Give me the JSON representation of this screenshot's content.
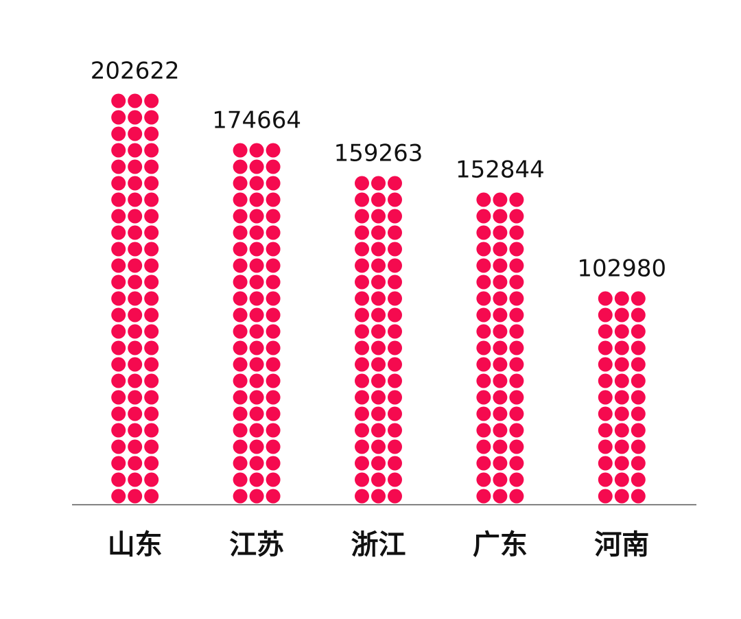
{
  "chart_data": {
    "type": "dot-bar",
    "categories": [
      "山东",
      "江苏",
      "浙江",
      "广东",
      "河南"
    ],
    "values": [
      202622,
      174664,
      159263,
      152844,
      102980
    ],
    "color": "#f50a4f"
  }
}
